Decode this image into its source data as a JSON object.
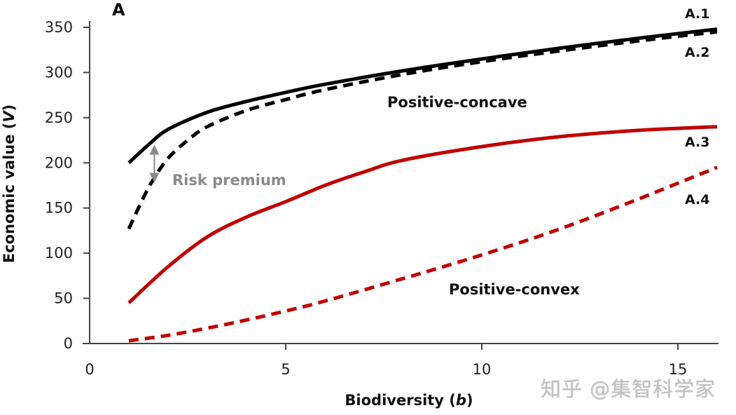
{
  "chart_data": {
    "type": "line",
    "panel_label": "A",
    "title": "",
    "xlabel": "Biodiversity (b)",
    "xlabel_parts": {
      "prefix": "Biodiversity (",
      "var": "b",
      "suffix": ")"
    },
    "ylabel": "Economic value (V)",
    "ylabel_parts": {
      "prefix": "Economic value (",
      "var": "V",
      "suffix": ")"
    },
    "xlim": [
      0,
      16
    ],
    "ylim": [
      0,
      350
    ],
    "x_ticks": [
      0,
      5,
      10,
      15
    ],
    "y_ticks": [
      0,
      50,
      100,
      150,
      200,
      250,
      300,
      350
    ],
    "grid": false,
    "series": [
      {
        "name": "A.1",
        "color": "#000000",
        "style": "solid",
        "x": [
          1,
          1.5,
          2,
          3,
          4,
          5,
          6,
          8,
          10,
          12,
          14,
          16
        ],
        "y": [
          200,
          220,
          237,
          256,
          268,
          278,
          287,
          302,
          315,
          327,
          338,
          348
        ]
      },
      {
        "name": "A.2",
        "color": "#000000",
        "style": "dashed",
        "x": [
          1,
          1.3,
          1.6,
          2,
          2.5,
          3,
          4,
          5,
          6,
          8,
          10,
          12,
          14,
          16
        ],
        "y": [
          127,
          155,
          180,
          205,
          225,
          240,
          258,
          270,
          281,
          298,
          312,
          324,
          335,
          345
        ]
      },
      {
        "name": "A.3",
        "color": "#c00000",
        "style": "solid",
        "x": [
          1,
          2,
          3,
          4,
          5,
          6,
          7,
          8,
          10,
          12,
          14,
          16
        ],
        "y": [
          45,
          85,
          118,
          140,
          157,
          175,
          190,
          203,
          218,
          229,
          236,
          240
        ]
      },
      {
        "name": "A.4",
        "color": "#c00000",
        "style": "dashed",
        "x": [
          1,
          2,
          3,
          4,
          5,
          6,
          8,
          10,
          12,
          14,
          16
        ],
        "y": [
          3,
          9,
          17,
          26,
          36,
          47,
          72,
          98,
          127,
          160,
          195
        ]
      }
    ],
    "annotations": [
      {
        "text": "Positive-concave",
        "x": 10.5,
        "y": 268
      },
      {
        "text": "Positive-convex",
        "x": 11.6,
        "y": 56
      },
      {
        "text": "Risk premium",
        "x": 2.1,
        "y": 183,
        "color": "#8a8a8a",
        "arrow": {
          "x": 1.65,
          "y_from": 220,
          "y_to": 178
        }
      }
    ]
  },
  "watermark": "知乎 @集智科学家"
}
